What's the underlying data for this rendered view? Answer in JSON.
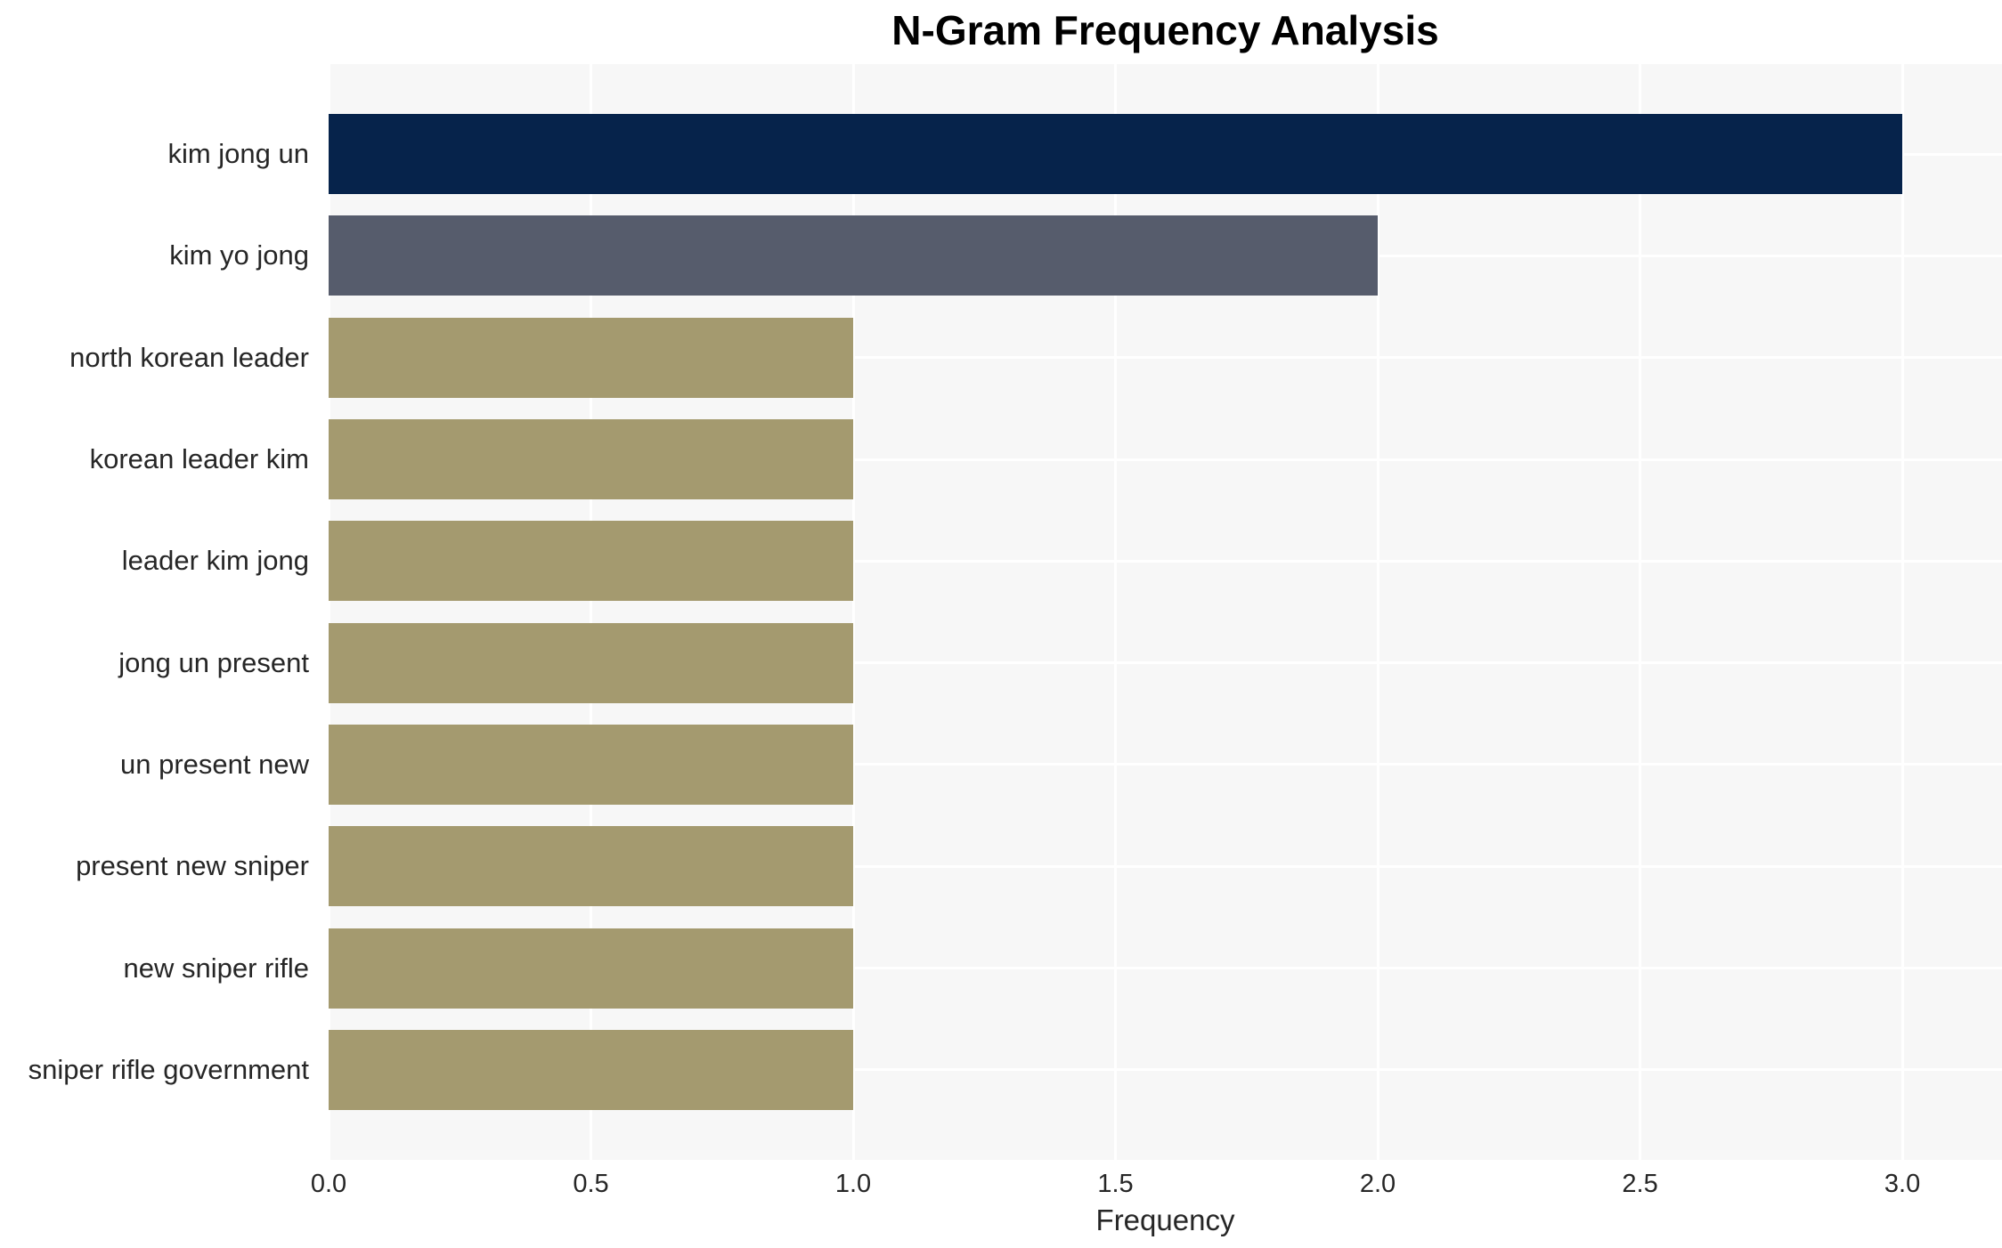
{
  "chart_data": {
    "type": "bar",
    "orientation": "horizontal",
    "title": "N-Gram Frequency Analysis",
    "xlabel": "Frequency",
    "ylabel": "",
    "categories": [
      "kim jong un",
      "kim yo jong",
      "north korean leader",
      "korean leader kim",
      "leader kim jong",
      "jong un present",
      "un present new",
      "present new sniper",
      "new sniper rifle",
      "sniper rifle government"
    ],
    "values": [
      3,
      2,
      1,
      1,
      1,
      1,
      1,
      1,
      1,
      1
    ],
    "xlim": [
      0,
      3.19
    ],
    "xticks": [
      0,
      0.5,
      1,
      1.5,
      2,
      2.5,
      3
    ],
    "xtick_labels": [
      "0.0",
      "0.5",
      "1.0",
      "1.5",
      "2.0",
      "2.5",
      "3.0"
    ],
    "grid": true,
    "legend": false,
    "colors": {
      "plot_background": "#f7f7f7",
      "gridline": "#ffffff",
      "text": "#262626",
      "title_text": "#000000",
      "bar_colors": [
        "#06234b",
        "#565c6c",
        "#a49a6f",
        "#a49a6f",
        "#a49a6f",
        "#a49a6f",
        "#a49a6f",
        "#a49a6f",
        "#a49a6f",
        "#a49a6f"
      ]
    }
  }
}
